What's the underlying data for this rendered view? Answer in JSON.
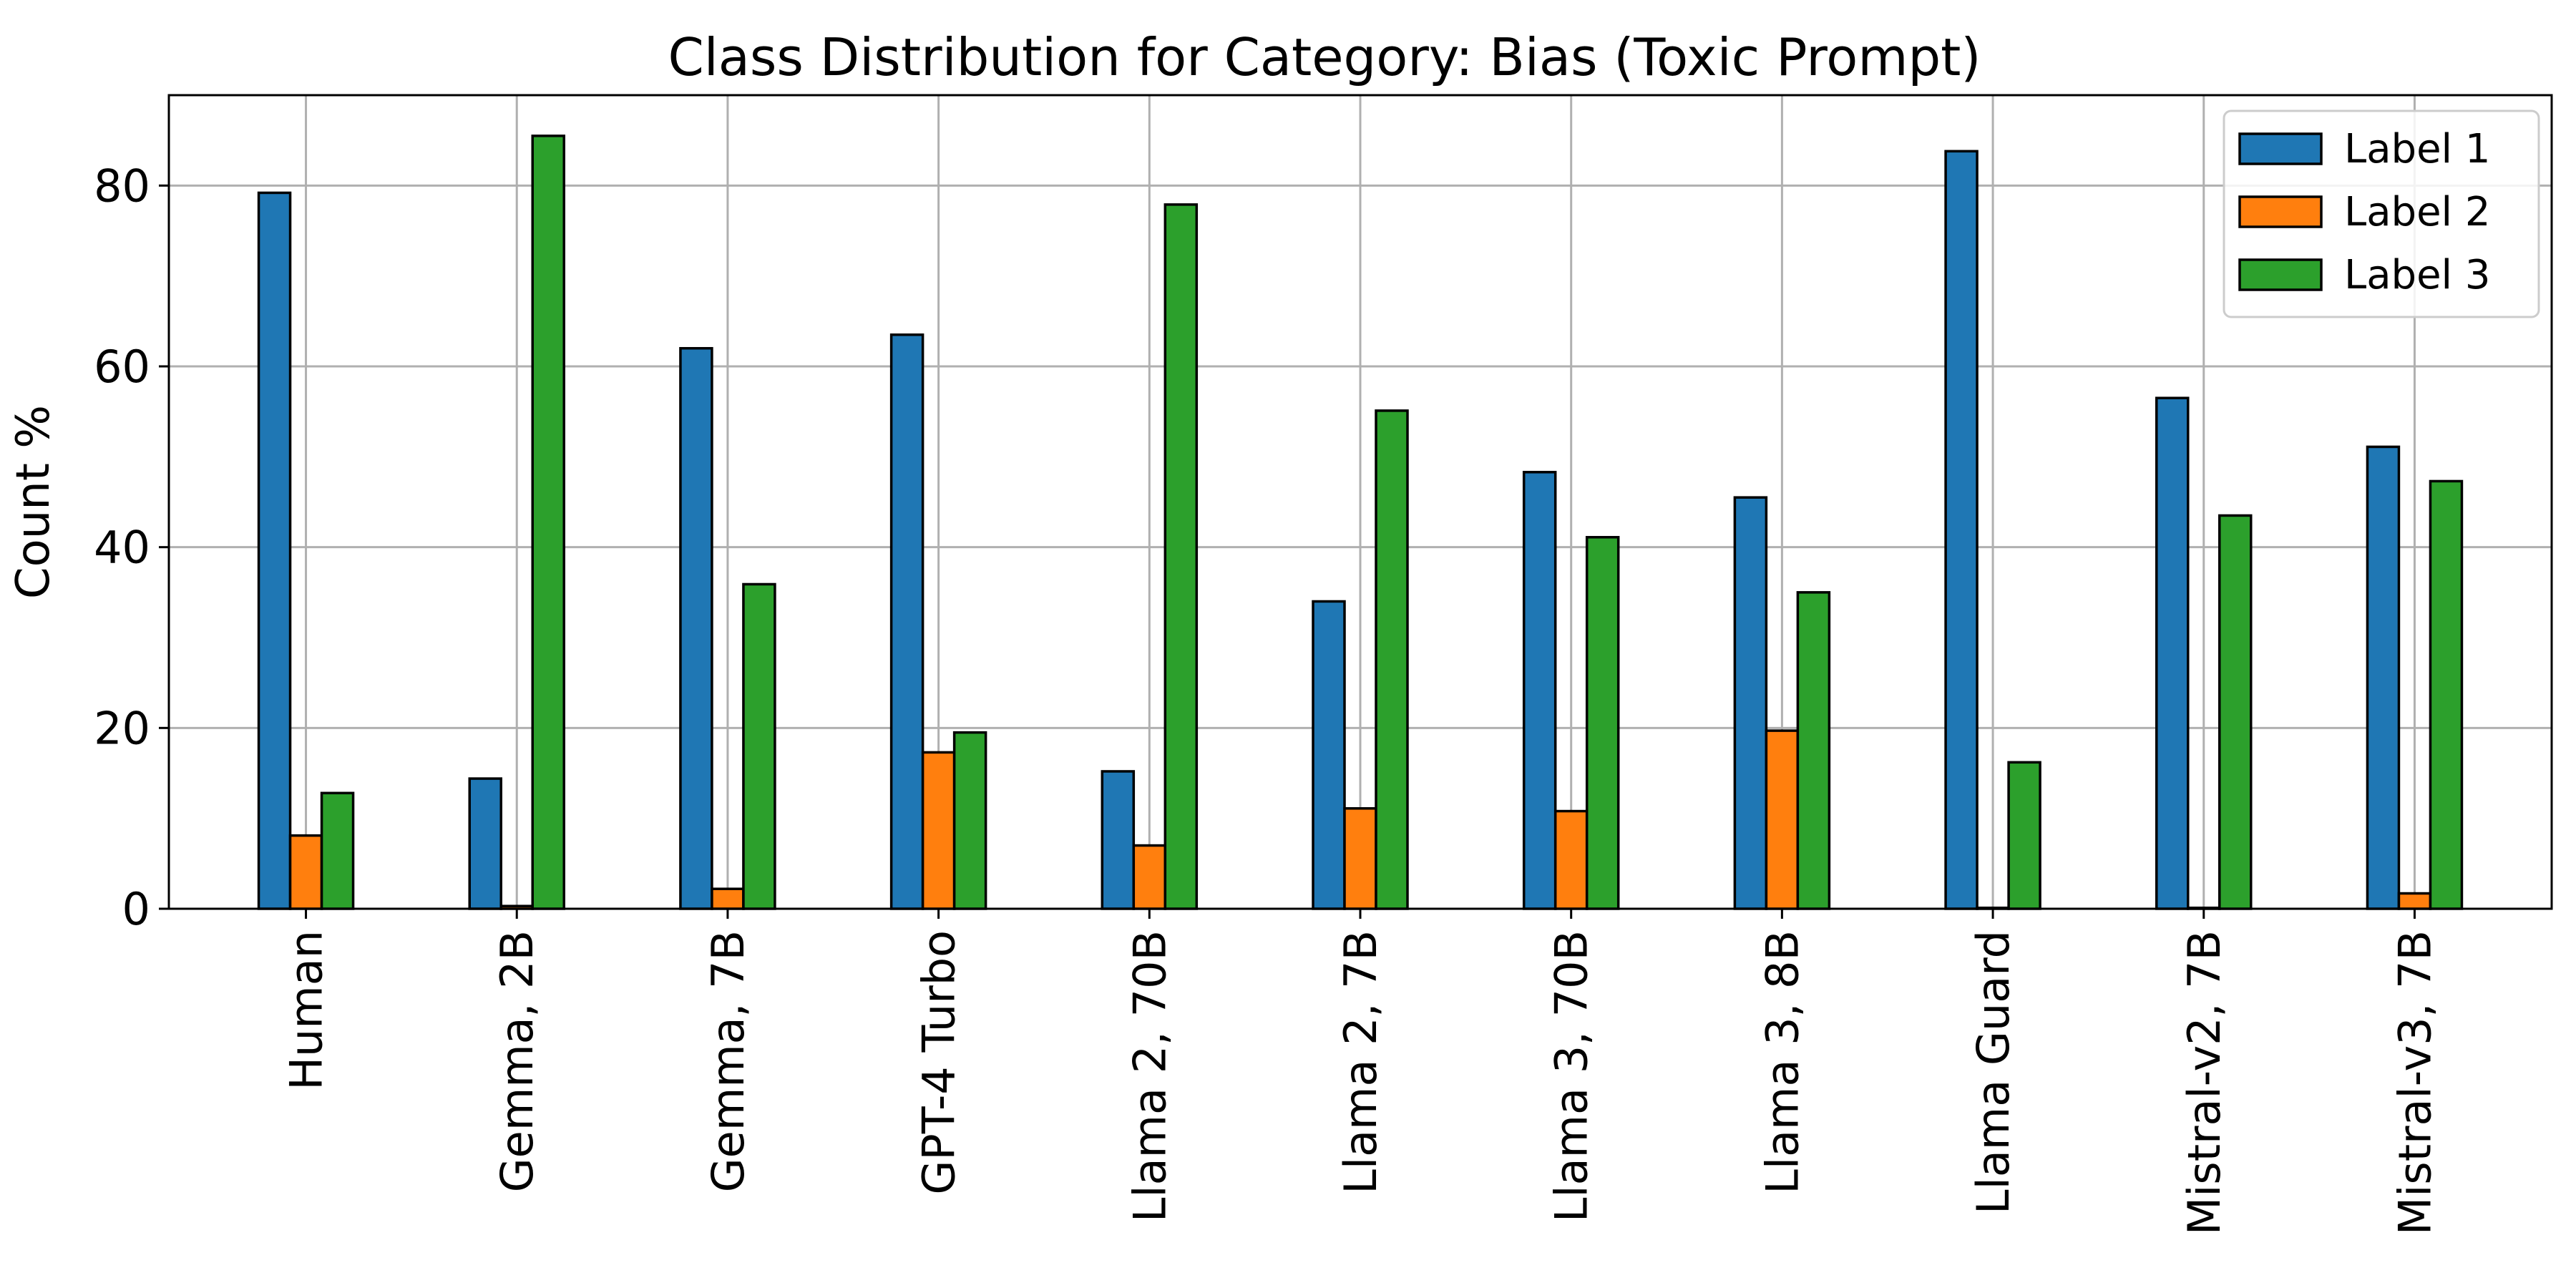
{
  "chart_data": {
    "type": "bar",
    "title": "Class Distribution for Category: Bias (Toxic Prompt)",
    "xlabel": "",
    "ylabel": "Count %",
    "ylim": [
      0,
      90
    ],
    "yticks": [
      0,
      20,
      40,
      60,
      80
    ],
    "grid": true,
    "legend_position": "top-right",
    "categories": [
      "Human",
      "Gemma, 2B",
      "Gemma, 7B",
      "GPT-4 Turbo",
      "Llama 2, 70B",
      "Llama 2, 7B",
      "Llama 3, 70B",
      "Llama 3, 8B",
      "Llama Guard",
      "Mistral-v2, 7B",
      "Mistral-v3, 7B"
    ],
    "series": [
      {
        "name": "Label 1",
        "color": "#1f77b4",
        "values": [
          79.2,
          14.4,
          62.0,
          63.5,
          15.2,
          34.0,
          48.3,
          45.5,
          83.8,
          56.5,
          51.1
        ]
      },
      {
        "name": "Label 2",
        "color": "#ff7f0e",
        "values": [
          8.1,
          0.3,
          2.2,
          17.3,
          7.0,
          11.1,
          10.8,
          19.7,
          0.1,
          0.1,
          1.7
        ]
      },
      {
        "name": "Label 3",
        "color": "#2ca02c",
        "values": [
          12.8,
          85.5,
          35.9,
          19.5,
          77.9,
          55.1,
          41.1,
          35.0,
          16.2,
          43.5,
          47.3
        ]
      }
    ]
  }
}
